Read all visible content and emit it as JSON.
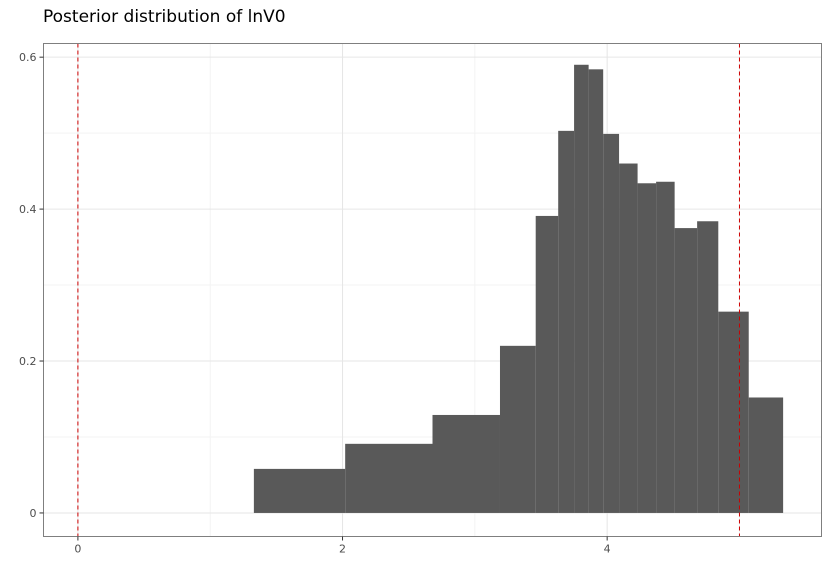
{
  "chart_data": {
    "type": "bar",
    "title": "Posterior distribution of lnV0",
    "xlabel": "",
    "ylabel": "",
    "xlim": [
      -0.26,
      5.62
    ],
    "ylim": [
      -0.031,
      0.618
    ],
    "x_ticks": [
      0,
      2,
      4
    ],
    "x_tick_labels": [
      "0",
      "2",
      "4"
    ],
    "y_ticks": [
      0,
      0.2,
      0.4,
      0.6
    ],
    "y_tick_labels": [
      "0",
      "0.2",
      "0.4",
      "0.6"
    ],
    "grid": true,
    "legend": "none",
    "bins": [
      {
        "x0": 1.33,
        "x1": 2.02,
        "value": 0.058
      },
      {
        "x0": 2.02,
        "x1": 2.68,
        "value": 0.091
      },
      {
        "x0": 2.68,
        "x1": 3.19,
        "value": 0.129
      },
      {
        "x0": 3.19,
        "x1": 3.46,
        "value": 0.22
      },
      {
        "x0": 3.46,
        "x1": 3.63,
        "value": 0.391
      },
      {
        "x0": 3.63,
        "x1": 3.75,
        "value": 0.503
      },
      {
        "x0": 3.75,
        "x1": 3.86,
        "value": 0.59
      },
      {
        "x0": 3.86,
        "x1": 3.97,
        "value": 0.584
      },
      {
        "x0": 3.97,
        "x1": 4.09,
        "value": 0.499
      },
      {
        "x0": 4.09,
        "x1": 4.23,
        "value": 0.46
      },
      {
        "x0": 4.23,
        "x1": 4.37,
        "value": 0.434
      },
      {
        "x0": 4.37,
        "x1": 4.51,
        "value": 0.436
      },
      {
        "x0": 4.51,
        "x1": 4.68,
        "value": 0.375
      },
      {
        "x0": 4.68,
        "x1": 4.84,
        "value": 0.384
      },
      {
        "x0": 4.84,
        "x1": 5.07,
        "value": 0.265
      },
      {
        "x0": 5.07,
        "x1": 5.33,
        "value": 0.152
      }
    ],
    "reference_lines": [
      {
        "x": 0,
        "color": "#cc0000",
        "style": "dashed"
      },
      {
        "x": 5.0,
        "color": "#cc0000",
        "style": "dashed"
      }
    ],
    "bar_color": "#595959"
  }
}
